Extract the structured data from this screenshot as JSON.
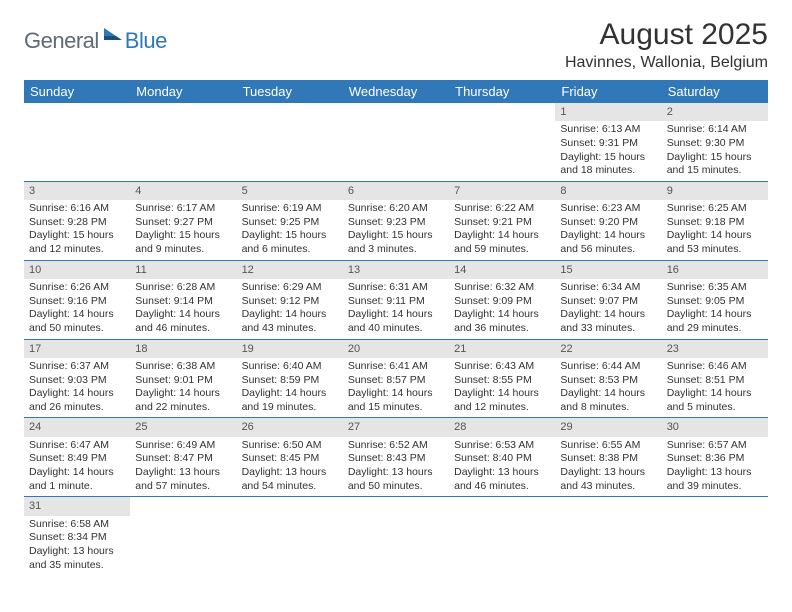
{
  "logo": {
    "general": "General",
    "blue": "Blue"
  },
  "title": "August 2025",
  "subtitle": "Havinnes, Wallonia, Belgium",
  "dayHeaders": [
    "Sunday",
    "Monday",
    "Tuesday",
    "Wednesday",
    "Thursday",
    "Friday",
    "Saturday"
  ],
  "colors": {
    "headerBg": "#3078b8",
    "headerText": "#ffffff",
    "dayNumBg": "#e5e5e5",
    "ruleColor": "#3078b8"
  },
  "weeks": [
    [
      null,
      null,
      null,
      null,
      null,
      {
        "n": "1",
        "sr": "Sunrise: 6:13 AM",
        "ss": "Sunset: 9:31 PM",
        "dl": "Daylight: 15 hours and 18 minutes."
      },
      {
        "n": "2",
        "sr": "Sunrise: 6:14 AM",
        "ss": "Sunset: 9:30 PM",
        "dl": "Daylight: 15 hours and 15 minutes."
      }
    ],
    [
      {
        "n": "3",
        "sr": "Sunrise: 6:16 AM",
        "ss": "Sunset: 9:28 PM",
        "dl": "Daylight: 15 hours and 12 minutes."
      },
      {
        "n": "4",
        "sr": "Sunrise: 6:17 AM",
        "ss": "Sunset: 9:27 PM",
        "dl": "Daylight: 15 hours and 9 minutes."
      },
      {
        "n": "5",
        "sr": "Sunrise: 6:19 AM",
        "ss": "Sunset: 9:25 PM",
        "dl": "Daylight: 15 hours and 6 minutes."
      },
      {
        "n": "6",
        "sr": "Sunrise: 6:20 AM",
        "ss": "Sunset: 9:23 PM",
        "dl": "Daylight: 15 hours and 3 minutes."
      },
      {
        "n": "7",
        "sr": "Sunrise: 6:22 AM",
        "ss": "Sunset: 9:21 PM",
        "dl": "Daylight: 14 hours and 59 minutes."
      },
      {
        "n": "8",
        "sr": "Sunrise: 6:23 AM",
        "ss": "Sunset: 9:20 PM",
        "dl": "Daylight: 14 hours and 56 minutes."
      },
      {
        "n": "9",
        "sr": "Sunrise: 6:25 AM",
        "ss": "Sunset: 9:18 PM",
        "dl": "Daylight: 14 hours and 53 minutes."
      }
    ],
    [
      {
        "n": "10",
        "sr": "Sunrise: 6:26 AM",
        "ss": "Sunset: 9:16 PM",
        "dl": "Daylight: 14 hours and 50 minutes."
      },
      {
        "n": "11",
        "sr": "Sunrise: 6:28 AM",
        "ss": "Sunset: 9:14 PM",
        "dl": "Daylight: 14 hours and 46 minutes."
      },
      {
        "n": "12",
        "sr": "Sunrise: 6:29 AM",
        "ss": "Sunset: 9:12 PM",
        "dl": "Daylight: 14 hours and 43 minutes."
      },
      {
        "n": "13",
        "sr": "Sunrise: 6:31 AM",
        "ss": "Sunset: 9:11 PM",
        "dl": "Daylight: 14 hours and 40 minutes."
      },
      {
        "n": "14",
        "sr": "Sunrise: 6:32 AM",
        "ss": "Sunset: 9:09 PM",
        "dl": "Daylight: 14 hours and 36 minutes."
      },
      {
        "n": "15",
        "sr": "Sunrise: 6:34 AM",
        "ss": "Sunset: 9:07 PM",
        "dl": "Daylight: 14 hours and 33 minutes."
      },
      {
        "n": "16",
        "sr": "Sunrise: 6:35 AM",
        "ss": "Sunset: 9:05 PM",
        "dl": "Daylight: 14 hours and 29 minutes."
      }
    ],
    [
      {
        "n": "17",
        "sr": "Sunrise: 6:37 AM",
        "ss": "Sunset: 9:03 PM",
        "dl": "Daylight: 14 hours and 26 minutes."
      },
      {
        "n": "18",
        "sr": "Sunrise: 6:38 AM",
        "ss": "Sunset: 9:01 PM",
        "dl": "Daylight: 14 hours and 22 minutes."
      },
      {
        "n": "19",
        "sr": "Sunrise: 6:40 AM",
        "ss": "Sunset: 8:59 PM",
        "dl": "Daylight: 14 hours and 19 minutes."
      },
      {
        "n": "20",
        "sr": "Sunrise: 6:41 AM",
        "ss": "Sunset: 8:57 PM",
        "dl": "Daylight: 14 hours and 15 minutes."
      },
      {
        "n": "21",
        "sr": "Sunrise: 6:43 AM",
        "ss": "Sunset: 8:55 PM",
        "dl": "Daylight: 14 hours and 12 minutes."
      },
      {
        "n": "22",
        "sr": "Sunrise: 6:44 AM",
        "ss": "Sunset: 8:53 PM",
        "dl": "Daylight: 14 hours and 8 minutes."
      },
      {
        "n": "23",
        "sr": "Sunrise: 6:46 AM",
        "ss": "Sunset: 8:51 PM",
        "dl": "Daylight: 14 hours and 5 minutes."
      }
    ],
    [
      {
        "n": "24",
        "sr": "Sunrise: 6:47 AM",
        "ss": "Sunset: 8:49 PM",
        "dl": "Daylight: 14 hours and 1 minute."
      },
      {
        "n": "25",
        "sr": "Sunrise: 6:49 AM",
        "ss": "Sunset: 8:47 PM",
        "dl": "Daylight: 13 hours and 57 minutes."
      },
      {
        "n": "26",
        "sr": "Sunrise: 6:50 AM",
        "ss": "Sunset: 8:45 PM",
        "dl": "Daylight: 13 hours and 54 minutes."
      },
      {
        "n": "27",
        "sr": "Sunrise: 6:52 AM",
        "ss": "Sunset: 8:43 PM",
        "dl": "Daylight: 13 hours and 50 minutes."
      },
      {
        "n": "28",
        "sr": "Sunrise: 6:53 AM",
        "ss": "Sunset: 8:40 PM",
        "dl": "Daylight: 13 hours and 46 minutes."
      },
      {
        "n": "29",
        "sr": "Sunrise: 6:55 AM",
        "ss": "Sunset: 8:38 PM",
        "dl": "Daylight: 13 hours and 43 minutes."
      },
      {
        "n": "30",
        "sr": "Sunrise: 6:57 AM",
        "ss": "Sunset: 8:36 PM",
        "dl": "Daylight: 13 hours and 39 minutes."
      }
    ],
    [
      {
        "n": "31",
        "sr": "Sunrise: 6:58 AM",
        "ss": "Sunset: 8:34 PM",
        "dl": "Daylight: 13 hours and 35 minutes."
      },
      null,
      null,
      null,
      null,
      null,
      null
    ]
  ]
}
